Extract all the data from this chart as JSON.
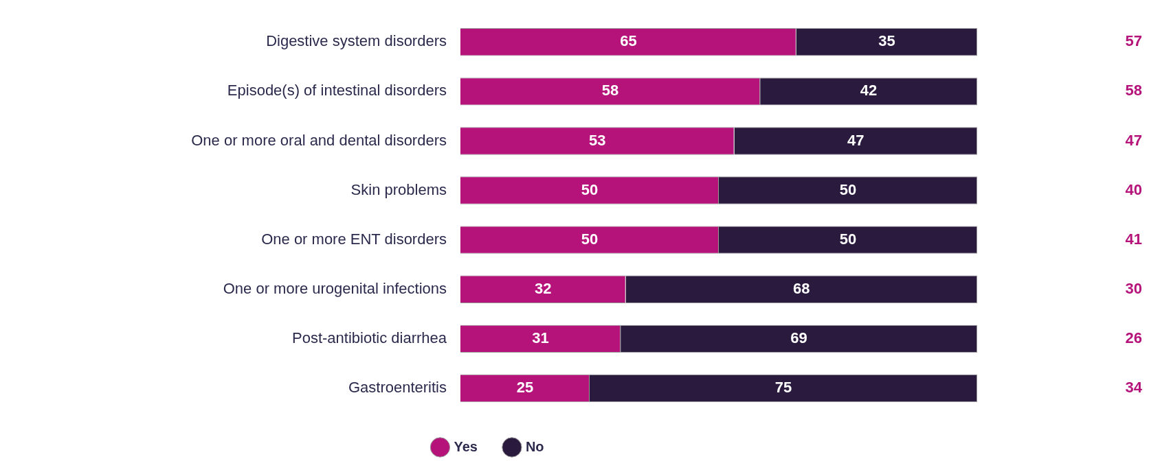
{
  "chart_data": {
    "type": "bar",
    "orientation": "horizontal",
    "stacked": true,
    "categories": [
      "Digestive system disorders",
      "Episode(s) of intestinal disorders",
      "One or more oral and dental disorders",
      "Skin problems",
      "One or more ENT disorders",
      "One or more urogenital infections",
      "Post-antibiotic diarrhea",
      "Gastroenteritis"
    ],
    "series": [
      {
        "name": "Yes",
        "color": "#b5127a",
        "values": [
          65,
          58,
          53,
          50,
          50,
          32,
          31,
          25
        ]
      },
      {
        "name": "No",
        "color": "#2a1a3e",
        "values": [
          35,
          42,
          47,
          50,
          50,
          68,
          69,
          75
        ]
      }
    ],
    "xlim": [
      0,
      100
    ],
    "tick_labels": "y",
    "data_labels": true,
    "legend": "bottom",
    "annotations": [
      "57",
      "58",
      "47",
      "40",
      "41",
      "30",
      "26",
      "34"
    ]
  }
}
